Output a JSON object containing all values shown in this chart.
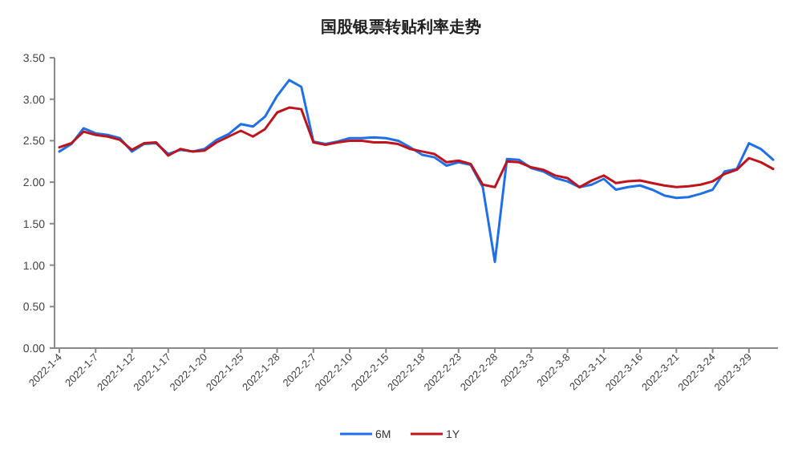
{
  "chart_data": {
    "type": "line",
    "title": "国股银票转贴利率走势",
    "categories": [
      "2022-1-4",
      null,
      null,
      "2022-1-7",
      null,
      null,
      "2022-1-12",
      null,
      null,
      "2022-1-17",
      null,
      null,
      "2022-1-20",
      null,
      null,
      "2022-1-25",
      null,
      null,
      "2022-1-28",
      null,
      null,
      "2022-2-7",
      null,
      null,
      "2022-2-10",
      null,
      null,
      "2022-2-15",
      null,
      null,
      "2022-2-18",
      null,
      null,
      "2022-2-23",
      null,
      null,
      "2022-2-28",
      null,
      null,
      "2022-3-3",
      null,
      null,
      "2022-3-8",
      null,
      null,
      "2022-3-11",
      null,
      null,
      "2022-3-16",
      null,
      null,
      "2022-3-21",
      null,
      null,
      "2022-3-24",
      null,
      null,
      "2022-3-29",
      null,
      null
    ],
    "series": [
      {
        "name": "6M",
        "color": "#1f6fe8",
        "values": [
          2.37,
          2.46,
          2.65,
          2.59,
          2.57,
          2.53,
          2.37,
          2.46,
          2.47,
          2.34,
          2.39,
          2.37,
          2.4,
          2.51,
          2.58,
          2.7,
          2.67,
          2.79,
          3.04,
          3.23,
          3.15,
          2.49,
          2.46,
          2.49,
          2.53,
          2.53,
          2.54,
          2.53,
          2.5,
          2.42,
          2.33,
          2.3,
          2.2,
          2.24,
          2.21,
          1.94,
          1.04,
          2.28,
          2.27,
          2.17,
          2.13,
          2.05,
          2.01,
          1.94,
          1.97,
          2.04,
          1.91,
          1.94,
          1.96,
          1.91,
          1.84,
          1.81,
          1.82,
          1.86,
          1.91,
          2.13,
          2.16,
          2.47,
          2.4,
          2.27
        ]
      },
      {
        "name": "1Y",
        "color": "#c0141c",
        "values": [
          2.42,
          2.47,
          2.61,
          2.57,
          2.55,
          2.51,
          2.39,
          2.47,
          2.48,
          2.32,
          2.4,
          2.37,
          2.38,
          2.48,
          2.55,
          2.62,
          2.55,
          2.64,
          2.84,
          2.9,
          2.88,
          2.48,
          2.45,
          2.48,
          2.5,
          2.5,
          2.48,
          2.48,
          2.46,
          2.4,
          2.37,
          2.34,
          2.24,
          2.26,
          2.22,
          1.97,
          1.94,
          2.25,
          2.24,
          2.18,
          2.15,
          2.08,
          2.05,
          1.94,
          2.02,
          2.08,
          1.99,
          2.01,
          2.02,
          1.99,
          1.96,
          1.94,
          1.95,
          1.97,
          2.01,
          2.1,
          2.15,
          2.29,
          2.24,
          2.16
        ]
      }
    ],
    "ylim": [
      0,
      3.5
    ],
    "yticks": [
      {
        "value": 0,
        "label": "0.00"
      },
      {
        "value": 0.5,
        "label": "0.50"
      },
      {
        "value": 1,
        "label": "1.00"
      },
      {
        "value": 1.5,
        "label": "1.50"
      },
      {
        "value": 2,
        "label": "2.00"
      },
      {
        "value": 2.5,
        "label": "2.50"
      },
      {
        "value": 3,
        "label": "3.00"
      },
      {
        "value": 3.5,
        "label": "3.50"
      }
    ],
    "legend": "bottom"
  }
}
